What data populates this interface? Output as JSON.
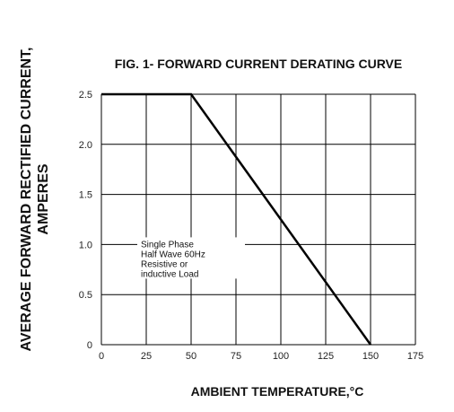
{
  "chart_data": {
    "type": "line",
    "title": "FIG. 1- FORWARD CURRENT DERATING CURVE",
    "xlabel": "AMBIENT TEMPERATURE,°C",
    "ylabel_lines": [
      "AVERAGE FORWARD RECTIFIED CURRENT,",
      "AMPERES"
    ],
    "xlim": [
      0,
      175
    ],
    "ylim": [
      0,
      2.5
    ],
    "xticks": [
      0,
      25,
      50,
      75,
      100,
      125,
      150,
      175
    ],
    "yticks": [
      0,
      0.5,
      1.0,
      1.5,
      2.0,
      2.5
    ],
    "xtick_labels": [
      "0",
      "25",
      "50",
      "75",
      "100",
      "125",
      "150",
      "175"
    ],
    "ytick_labels": [
      "0",
      "0.5",
      "1.0",
      "1.5",
      "2.0",
      "2.5"
    ],
    "grid": true,
    "series": [
      {
        "x": [
          0,
          50,
          150
        ],
        "y": [
          2.5,
          2.5,
          0
        ]
      }
    ],
    "annotation": {
      "lines": [
        "Single Phase",
        "Half Wave 60Hz",
        "Resistive or",
        "inductive Load"
      ],
      "x": 0,
      "y": 1.0
    },
    "line_color": "#000000"
  }
}
